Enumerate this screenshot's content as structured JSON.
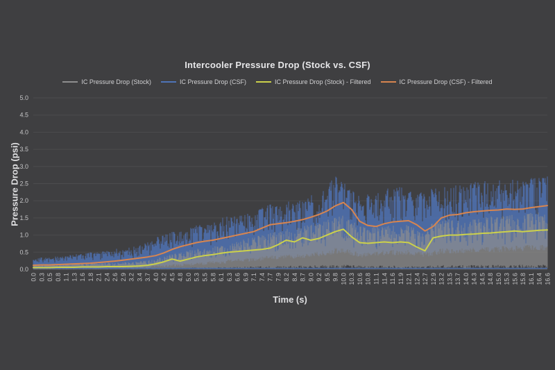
{
  "theme": {
    "background": "#3f3f41",
    "grid": "#4c4c4e",
    "axis": "#606062",
    "title_color": "#e6e6e8",
    "tick_color": "#c4c4c6"
  },
  "chart_data": {
    "type": "line",
    "title": "Intercooler Pressure Drop (Stock vs. CSF)",
    "xlabel": "Time (s)",
    "ylabel": "Pressure Drop (psi)",
    "ylim": [
      0,
      5
    ],
    "ytick_step": 0.5,
    "yticks": [
      "0.0",
      "0.5",
      "1.0",
      "1.5",
      "2.0",
      "2.5",
      "3.0",
      "3.5",
      "4.0",
      "4.5",
      "5.0"
    ],
    "grid": "horizontal",
    "legend_position": "top",
    "x": [
      "0.0",
      "0.3",
      "0.5",
      "0.8",
      "1.1",
      "1.3",
      "1.6",
      "1.8",
      "2.1",
      "2.4",
      "2.6",
      "2.9",
      "3.2",
      "3.4",
      "3.7",
      "4.0",
      "4.2",
      "4.5",
      "4.8",
      "5.0",
      "5.3",
      "5.5",
      "5.8",
      "6.1",
      "6.3",
      "6.6",
      "6.9",
      "7.1",
      "7.4",
      "7.7",
      "7.9",
      "8.2",
      "8.4",
      "8.7",
      "9.0",
      "9.2",
      "9.5",
      "9.8",
      "10.0",
      "10.3",
      "10.6",
      "10.8",
      "11.1",
      "11.4",
      "11.6",
      "11.9",
      "12.1",
      "12.4",
      "12.7",
      "12.9",
      "13.2",
      "13.5",
      "13.7",
      "14.0",
      "14.3",
      "14.5",
      "14.8",
      "15.0",
      "15.3",
      "15.6",
      "15.8",
      "16.1",
      "16.4",
      "16.6"
    ],
    "series": [
      {
        "name": "IC Pressure Drop (Stock)",
        "color": "#8f8f8f",
        "style": "raw",
        "opacity": 0.72,
        "envelope_lo": 0.01,
        "envelope_hi": [
          0.15,
          0.15,
          0.16,
          0.16,
          0.17,
          0.17,
          0.18,
          0.18,
          0.19,
          0.2,
          0.2,
          0.21,
          0.22,
          0.24,
          0.27,
          0.32,
          0.38,
          0.45,
          0.48,
          0.55,
          0.6,
          0.63,
          0.68,
          0.73,
          0.76,
          0.85,
          0.9,
          0.95,
          1.0,
          1.08,
          1.12,
          1.2,
          1.22,
          1.3,
          1.35,
          1.4,
          1.48,
          1.55,
          1.6,
          1.42,
          1.28,
          1.25,
          1.28,
          1.3,
          1.3,
          1.33,
          1.33,
          1.2,
          1.05,
          1.4,
          1.45,
          1.48,
          1.48,
          1.5,
          1.5,
          1.52,
          1.55,
          1.55,
          1.58,
          1.6,
          1.62,
          1.65,
          1.7,
          1.75
        ]
      },
      {
        "name": "IC Pressure Drop (CSF)",
        "color": "#4f74b8",
        "style": "raw",
        "opacity": 0.82,
        "baseline": 0.03,
        "envelope_lo": [
          0.02,
          0.02,
          0.02,
          0.02,
          0.02,
          0.02,
          0.02,
          0.02,
          0.02,
          0.02,
          0.02,
          0.02,
          0.02,
          0.02,
          0.02,
          0.05,
          0.06,
          0.08,
          0.08,
          0.1,
          0.12,
          0.12,
          0.15,
          0.15,
          0.18,
          0.2,
          0.22,
          0.22,
          0.25,
          0.28,
          0.28,
          0.3,
          0.3,
          0.32,
          0.35,
          0.38,
          0.4,
          0.45,
          0.45,
          0.4,
          0.35,
          0.35,
          0.38,
          0.4,
          0.4,
          0.42,
          0.42,
          0.38,
          0.35,
          0.4,
          0.45,
          0.45,
          0.45,
          0.48,
          0.48,
          0.5,
          0.5,
          0.5,
          0.52,
          0.52,
          0.52,
          0.55,
          0.55,
          0.55
        ],
        "envelope_hi": [
          0.3,
          0.35,
          0.35,
          0.4,
          0.4,
          0.45,
          0.45,
          0.5,
          0.5,
          0.55,
          0.6,
          0.6,
          0.65,
          0.7,
          0.8,
          0.95,
          1.0,
          1.1,
          1.1,
          1.2,
          1.3,
          1.3,
          1.4,
          1.5,
          1.55,
          1.6,
          1.65,
          1.7,
          1.8,
          1.9,
          1.9,
          2.0,
          2.0,
          2.1,
          2.2,
          2.3,
          2.4,
          2.75,
          2.6,
          2.3,
          2.2,
          2.2,
          2.3,
          2.35,
          2.4,
          2.4,
          2.4,
          2.3,
          2.2,
          2.4,
          2.5,
          2.5,
          2.5,
          2.55,
          2.55,
          2.6,
          2.6,
          2.6,
          2.65,
          2.65,
          2.65,
          2.7,
          2.7,
          2.75
        ]
      },
      {
        "name": "IC Pressure Drop (Stock) - Filtered",
        "color": "#ccd14b",
        "style": "line",
        "values": [
          0.05,
          0.05,
          0.05,
          0.06,
          0.06,
          0.06,
          0.07,
          0.07,
          0.07,
          0.08,
          0.08,
          0.08,
          0.09,
          0.1,
          0.12,
          0.16,
          0.22,
          0.3,
          0.24,
          0.3,
          0.36,
          0.4,
          0.43,
          0.47,
          0.5,
          0.52,
          0.54,
          0.56,
          0.58,
          0.62,
          0.72,
          0.85,
          0.8,
          0.92,
          0.85,
          0.9,
          1.0,
          1.1,
          1.17,
          0.95,
          0.78,
          0.76,
          0.78,
          0.8,
          0.78,
          0.8,
          0.78,
          0.65,
          0.54,
          0.92,
          0.97,
          1.0,
          1.0,
          1.02,
          1.03,
          1.05,
          1.06,
          1.08,
          1.1,
          1.12,
          1.1,
          1.12,
          1.14,
          1.15
        ]
      },
      {
        "name": "IC Pressure Drop (CSF) - Filtered",
        "color": "#d8854f",
        "style": "line",
        "values": [
          0.12,
          0.13,
          0.13,
          0.14,
          0.15,
          0.16,
          0.17,
          0.18,
          0.2,
          0.22,
          0.24,
          0.27,
          0.3,
          0.33,
          0.36,
          0.4,
          0.48,
          0.58,
          0.66,
          0.72,
          0.78,
          0.82,
          0.85,
          0.9,
          0.95,
          1.0,
          1.05,
          1.1,
          1.2,
          1.3,
          1.33,
          1.36,
          1.4,
          1.45,
          1.52,
          1.6,
          1.7,
          1.85,
          1.95,
          1.75,
          1.4,
          1.28,
          1.25,
          1.33,
          1.38,
          1.4,
          1.42,
          1.3,
          1.12,
          1.25,
          1.5,
          1.58,
          1.6,
          1.65,
          1.68,
          1.7,
          1.72,
          1.73,
          1.76,
          1.75,
          1.76,
          1.8,
          1.83,
          1.86
        ]
      }
    ]
  }
}
